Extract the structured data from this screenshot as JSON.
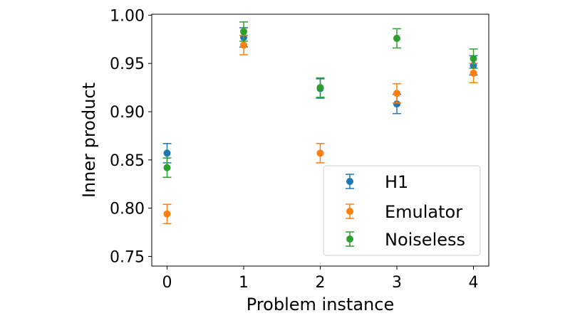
{
  "chart_data": {
    "type": "scatter",
    "title": "",
    "xlabel": "Problem instance",
    "ylabel": "Inner product",
    "xlim": [
      -0.2,
      4.2
    ],
    "ylim": [
      0.74,
      1.001
    ],
    "xticks": [
      0,
      1,
      2,
      3,
      4
    ],
    "xtick_labels": [
      "0",
      "1",
      "2",
      "3",
      "4"
    ],
    "yticks": [
      0.75,
      0.8,
      0.85,
      0.9,
      0.95,
      1.0
    ],
    "ytick_labels": [
      "0.75",
      "0.80",
      "0.85",
      "0.90",
      "0.95",
      "1.00"
    ],
    "grid": false,
    "legend_position": "lower-right",
    "series": [
      {
        "name": "H1",
        "color": "#1f77b4",
        "x": [
          0,
          1,
          2,
          3,
          4
        ],
        "values": [
          0.857,
          0.977,
          0.924,
          0.908,
          0.948
        ],
        "error": [
          0.01,
          0.01,
          0.01,
          0.01,
          0.01
        ]
      },
      {
        "name": "Emulator",
        "color": "#ff7f0e",
        "x": [
          0,
          1,
          2,
          3,
          4
        ],
        "values": [
          0.794,
          0.969,
          0.857,
          0.919,
          0.94
        ],
        "error": [
          0.01,
          0.01,
          0.01,
          0.01,
          0.01
        ]
      },
      {
        "name": "Noiseless",
        "color": "#2ca02c",
        "x": [
          0,
          1,
          2,
          3,
          4
        ],
        "values": [
          0.842,
          0.983,
          0.925,
          0.976,
          0.955
        ],
        "error": [
          0.01,
          0.01,
          0.01,
          0.01,
          0.01
        ]
      }
    ]
  }
}
